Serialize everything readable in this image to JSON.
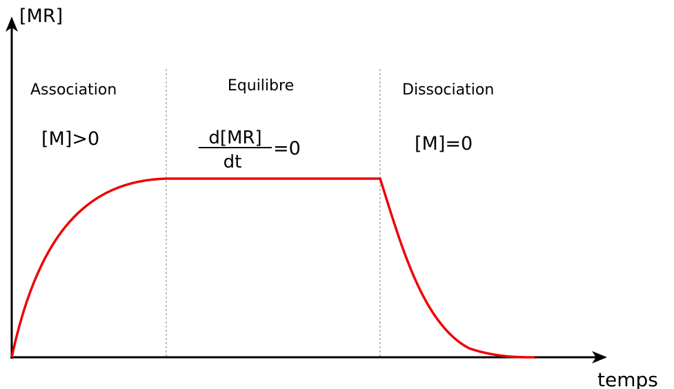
{
  "axes": {
    "y_label": "[MR]",
    "x_label": "temps"
  },
  "phases": [
    {
      "title": "Association",
      "condition": "[M]>0"
    },
    {
      "title": "Equilibre",
      "condition": {
        "numerator": "d[MR]",
        "denominator": "dt",
        "equals": "=0"
      }
    },
    {
      "title": "Dissociation",
      "condition": "[M]=0"
    }
  ]
}
